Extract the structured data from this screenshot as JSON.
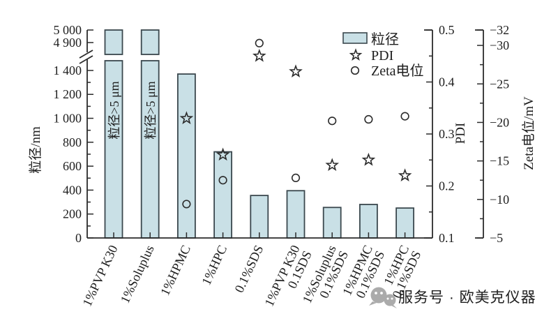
{
  "chart_data": {
    "type": "bar",
    "title": "",
    "categories": [
      {
        "lines": [
          "1%PVP K30"
        ]
      },
      {
        "lines": [
          "1%Soluplus"
        ]
      },
      {
        "lines": [
          "1%HPMC"
        ]
      },
      {
        "lines": [
          "1%HPC"
        ]
      },
      {
        "lines": [
          "0.1%SDS"
        ]
      },
      {
        "lines": [
          "1%PVP K30",
          "0.1SDS"
        ]
      },
      {
        "lines": [
          "1%Soluplus",
          "0.1%SDS"
        ]
      },
      {
        "lines": [
          "1%HPMC",
          "0.1%SDS"
        ]
      },
      {
        "lines": [
          "1%HPC",
          "0.1%SDS"
        ]
      }
    ],
    "series": [
      {
        "name": "粒径",
        "marker": "bar",
        "axis": "size",
        "unit": "nm",
        "values": [
          5000,
          5000,
          1370,
          720,
          355,
          395,
          255,
          280,
          250
        ],
        "offscale": [
          true,
          true,
          false,
          false,
          false,
          false,
          false,
          false,
          false
        ],
        "offscale_label": "粒径>5 μm"
      },
      {
        "name": "PDI",
        "marker": "star",
        "axis": "pdi",
        "values": [
          null,
          null,
          0.33,
          0.26,
          0.45,
          0.42,
          0.24,
          0.25,
          0.22
        ]
      },
      {
        "name": "Zeta电位",
        "marker": "circle",
        "axis": "zeta",
        "unit": "mV",
        "values": [
          null,
          null,
          -9.4,
          -12.5,
          -30.3,
          -12.8,
          -20.2,
          -20.4,
          -20.8
        ]
      }
    ],
    "axes": {
      "size": {
        "label": "粒径/nm",
        "axis_break": true,
        "lower": {
          "min": 0,
          "max": 1493,
          "major_ticks": [
            0,
            200,
            400,
            600,
            800,
            1000,
            1200,
            1400
          ],
          "tick_labels": [
            "0",
            "200",
            "400",
            "600",
            "800",
            "1 000",
            "1 200",
            "1 400"
          ],
          "minor_ticks": [
            100,
            300,
            500,
            700,
            900,
            1100,
            1300
          ]
        },
        "upper": {
          "min": 4822,
          "max": 5000,
          "major_ticks": [
            4900,
            5000
          ],
          "tick_labels": [
            "4 900",
            "5 000"
          ],
          "minor_ticks": []
        }
      },
      "pdi": {
        "label": "PDI",
        "min": 0.1,
        "max": 0.5,
        "major_ticks": [
          0.1,
          0.2,
          0.3,
          0.4,
          0.5
        ],
        "tick_labels": [
          "0.1",
          "0.2",
          "0.3",
          "0.4",
          "0.5"
        ],
        "minor_ticks": [
          0.15,
          0.25,
          0.35,
          0.45
        ]
      },
      "zeta": {
        "label": "Zeta电位/mV",
        "min": -5,
        "max": -32,
        "major_ticks": [
          -5,
          -10,
          -15,
          -20,
          -25,
          -30,
          -32
        ],
        "tick_labels": [
          "−5",
          "−10",
          "−15",
          "−20",
          "−25",
          "−30",
          "−32"
        ],
        "minor_ticks": [
          -7.5,
          -12.5,
          -17.5,
          -22.5,
          -27.5
        ]
      }
    },
    "legend": [
      {
        "label": "粒径",
        "marker": "bar"
      },
      {
        "label": "PDI",
        "marker": "star"
      },
      {
        "label": "Zeta电位",
        "marker": "circle"
      }
    ],
    "colors": {
      "bar_fill": "#c9e0e6",
      "bar_stroke": "#3b484e",
      "stroke": "#2b2b2b",
      "text": "#1e1e1e",
      "watermark": "#ababab"
    }
  },
  "watermark": {
    "icon": "wechat-icon",
    "text": "服务号 · 欧美克仪器"
  }
}
